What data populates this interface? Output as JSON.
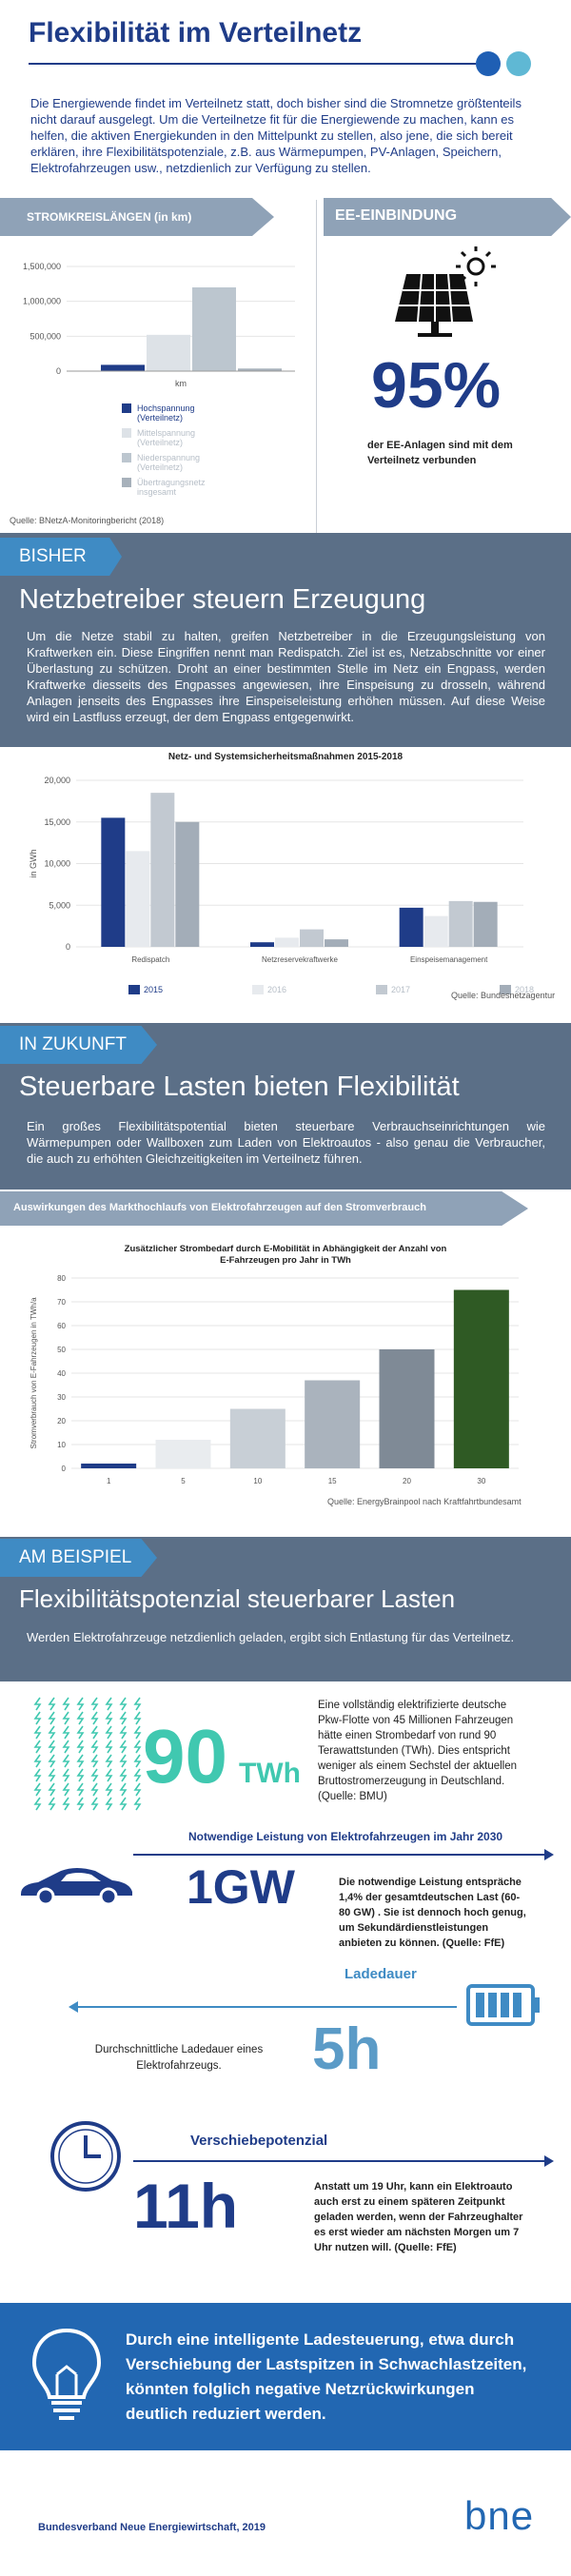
{
  "colors": {
    "navy": "#1f3c88",
    "blue": "#3f8bc4",
    "slate": "#5b6f87",
    "gray": "#a9b1bb",
    "green": "#2f5a24",
    "teal": "#40c8b0",
    "banner": "#8fa2b7"
  },
  "header": {
    "title": "Flexibilität im Verteilnetz",
    "intro": "Die Energiewende findet im Verteilnetz statt, doch bisher sind die Stromnetze größtenteils nicht darauf ausgelegt. Um die Verteilnetze fit für die Energiewende zu machen, kann es helfen, die aktiven Energiekunden in den Mittelpunkt zu stellen, also jene, die sich bereit erklären, ihre Flexibilitätspotenziale, z.B. aus Wärmepumpen, PV-Anlagen, Speichern, Elektrofahrzeugen usw., netzdienlich zur Verfügung zu stellen."
  },
  "row1": {
    "left_banner": "STROMKREISLÄNGEN (in km)",
    "right_banner": "EE-EINBINDUNG",
    "source": "Quelle: BNetzA-Monitoringbericht (2018)",
    "percent": "95%",
    "percent_caption": "der EE-Anlagen sind mit dem Verteilnetz verbunden",
    "solar_icon": "solar-panel-icon"
  },
  "bisher": {
    "tag": "BISHER",
    "title": "Netzbetreiber steuern Erzeugung",
    "text": "Um die Netze stabil zu halten, greifen Netzbetreiber in die Erzeugungsleistung von Kraftwerken ein. Diese Eingriffen nennt man Redispatch. Ziel ist es, Netzabschnitte vor einer Überlastung zu schützen. Droht an einer bestimmten Stelle im Netz ein Engpass, werden Kraftwerke diesseits des Engpasses angewiesen, ihre Einspeisung zu drosseln, während Anlagen jenseits des Engpasses ihre Einspeiseleistung erhöhen müssen. Auf diese Weise wird ein Lastfluss erzeugt, der dem Engpass entgegenwirkt.",
    "source": "Quelle: Bundesnetzagentur"
  },
  "zukunft": {
    "tag": "IN ZUKUNFT",
    "title": "Steuerbare Lasten bieten Flexibilität",
    "text": "Ein großes Flexibilitätspotential bieten steuerbare Verbrauchseinrichtungen wie Wärmepumpen oder Wallboxen zum Laden von Elektroautos - also genau die Verbraucher, die auch zu erhöhten Gleichzeitigkeiten im Verteilnetz führen.",
    "banner": "Auswirkungen des Markthochlaufs von Elektrofahrzeugen auf den Stromverbrauch",
    "source": "Quelle: EnergyBrainpool nach Kraftfahrtbundesamt"
  },
  "beispiel": {
    "tag": "AM BEISPIEL",
    "title": "Flexibilitätspotenzial steuerbarer Lasten",
    "subtitle": "Werden Elektrofahrzeuge netzdienlich geladen, ergibt sich Entlastung für das Verteilnetz.",
    "big90": "90",
    "big90_unit": "TWh",
    "text90": "Eine vollständig elektrifizierte deutsche Pkw-Flotte von 45 Millionen Fahrzeugen hätte einen Strombedarf von rund 90 Terawattstunden (TWh). Dies entspricht weniger als einem Sechstel der aktuellen Bruttostromerzeugung in Deutschland. (Quelle: BMU)",
    "leistung_title": "Notwendige Leistung von Elektrofahrzeugen im Jahr 2030",
    "big1gw": "1GW",
    "text1gw": "Die notwendige Leistung entspräche 1,4% der gesamtdeutschen Last (60-80 GW) . Sie ist dennoch hoch genug, um Sekundärdienstleistungen anbieten zu können. (Quelle: FfE)",
    "ladedauer_title": "Ladedauer",
    "big5h": "5h",
    "text5h": "Durchschnittliche Ladedauer eines Elektrofahrzeugs.",
    "verschiebe_title": "Verschiebepotenzial",
    "big11h": "11h",
    "text11h": "Anstatt um 19 Uhr, kann ein Elektroauto auch erst zu einem späteren Zeitpunkt geladen werden, wenn der Fahrzeughalter es erst wieder am nächsten Morgen um 7 Uhr nutzen will. (Quelle: FfE)"
  },
  "conclusion": {
    "text": "Durch eine intelligente Ladesteuerung, etwa durch Verschiebung der Lastspitzen in Schwachlastzeiten, könnten folglich negative Netzrückwirkungen deutlich reduziert werden."
  },
  "footer": {
    "credit": "Bundesverband Neue Energiewirtschaft, 2019",
    "logo": "bne"
  },
  "chart_data": [
    {
      "type": "bar",
      "title": "",
      "xlabel": "km",
      "ylabel": "",
      "ylim": [
        0,
        1500000
      ],
      "yticks": [
        "1,500,000",
        "1,000,000",
        "500,000",
        "0"
      ],
      "categories": [
        "km"
      ],
      "series": [
        {
          "name": "Hochspannung (Verteilnetz)",
          "values": [
            90000
          ],
          "color": "#1f3c88"
        },
        {
          "name": "Mittelspannung (Verteilnetz)",
          "values": [
            520000
          ],
          "color": "#dde2e7"
        },
        {
          "name": "Niederspannung (Verteilnetz)",
          "values": [
            1200000
          ],
          "color": "#bcc6cf"
        },
        {
          "name": "Übertragungsnetz insgesamt",
          "values": [
            37000
          ],
          "color": "#a7b1bb"
        }
      ]
    },
    {
      "type": "bar",
      "title": "Netz- und Systemsicherheitsmaßnahmen 2015-2018",
      "ylabel": "in GWh",
      "ylim": [
        0,
        20000
      ],
      "yticks": [
        "20,000",
        "15,000",
        "10,000",
        "5,000",
        "0"
      ],
      "categories": [
        "Redispatch",
        "Netzreservekraftwerke",
        "Einspeisemanagement"
      ],
      "series": [
        {
          "name": "2015",
          "values": [
            15500,
            550,
            4700
          ],
          "color": "#1f3c88"
        },
        {
          "name": "2016",
          "values": [
            11500,
            1100,
            3700
          ],
          "color": "#e7eaee"
        },
        {
          "name": "2017",
          "values": [
            18500,
            2100,
            5500
          ],
          "color": "#c2c9d1"
        },
        {
          "name": "2018",
          "values": [
            15000,
            900,
            5400
          ],
          "color": "#a3adb8"
        }
      ]
    },
    {
      "type": "bar",
      "title": "Zusätzlicher Strombedarf durch E-Mobilität in Abhängigkeit der Anzahl von E-Fahrzeugen pro Jahr in TWh",
      "ylabel": "Stromverbrauch von E-Fahrzeugen in TWh/a",
      "ylim": [
        0,
        80
      ],
      "yticks": [
        "80",
        "70",
        "60",
        "50",
        "40",
        "30",
        "20",
        "10",
        "0"
      ],
      "categories": [
        "1",
        "5",
        "10",
        "15",
        "20",
        "30"
      ],
      "values": [
        2,
        12,
        25,
        37,
        50,
        75
      ],
      "colors": [
        "#1f3c88",
        "#e9ecef",
        "#c8cfd6",
        "#aab3bd",
        "#7f8a96",
        "#2f5a24"
      ]
    }
  ]
}
